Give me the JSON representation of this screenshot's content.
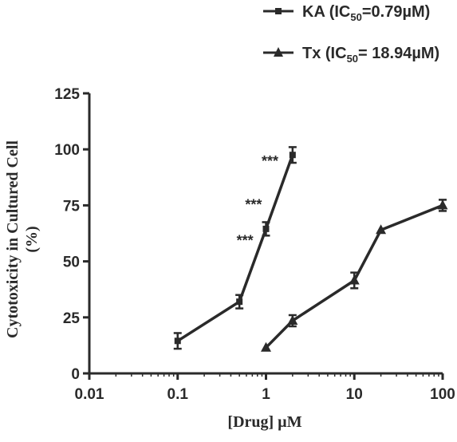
{
  "chart_data": {
    "type": "line",
    "x_scale": "log",
    "xlabel": "[Drug] µM",
    "ylabel_line1": "Cytotoxicity in Cultured Cell",
    "ylabel_line2": "(%)",
    "xlim": [
      0.01,
      100
    ],
    "ylim": [
      0,
      125
    ],
    "x_ticks": [
      0.01,
      0.1,
      1,
      10,
      100
    ],
    "x_tick_labels": [
      "0.01",
      "0.1",
      "1",
      "10",
      "100"
    ],
    "y_ticks": [
      0,
      25,
      50,
      75,
      100,
      125
    ],
    "y_tick_labels": [
      "0",
      "25",
      "50",
      "75",
      "100",
      "125"
    ],
    "grid": false,
    "legend_position": "top-right",
    "series": [
      {
        "name": "KA",
        "legend_prefix": "KA (IC",
        "legend_sub": "50",
        "legend_suffix": "=0.79µM)",
        "marker": "square",
        "color": "#2a2a2a",
        "x": [
          0.1,
          0.5,
          1,
          2
        ],
        "y": [
          14.5,
          32,
          64.5,
          97.5
        ],
        "err": [
          3.5,
          3,
          3,
          3.5
        ]
      },
      {
        "name": "Tx",
        "legend_prefix": "Tx (IC",
        "legend_sub": "50",
        "legend_suffix": "= 18.94µM)",
        "marker": "triangle",
        "color": "#2a2a2a",
        "x": [
          1,
          2,
          10,
          20,
          100
        ],
        "y": [
          11.5,
          23.5,
          41.5,
          64,
          75
        ],
        "err": [
          0,
          2.5,
          3.5,
          0,
          2.5
        ]
      }
    ],
    "annotations": [
      {
        "text": "***",
        "x": 1.38,
        "y": 95.5
      },
      {
        "text": "***",
        "x": 0.9,
        "y": 76
      },
      {
        "text": "***",
        "x": 0.72,
        "y": 60
      }
    ]
  }
}
